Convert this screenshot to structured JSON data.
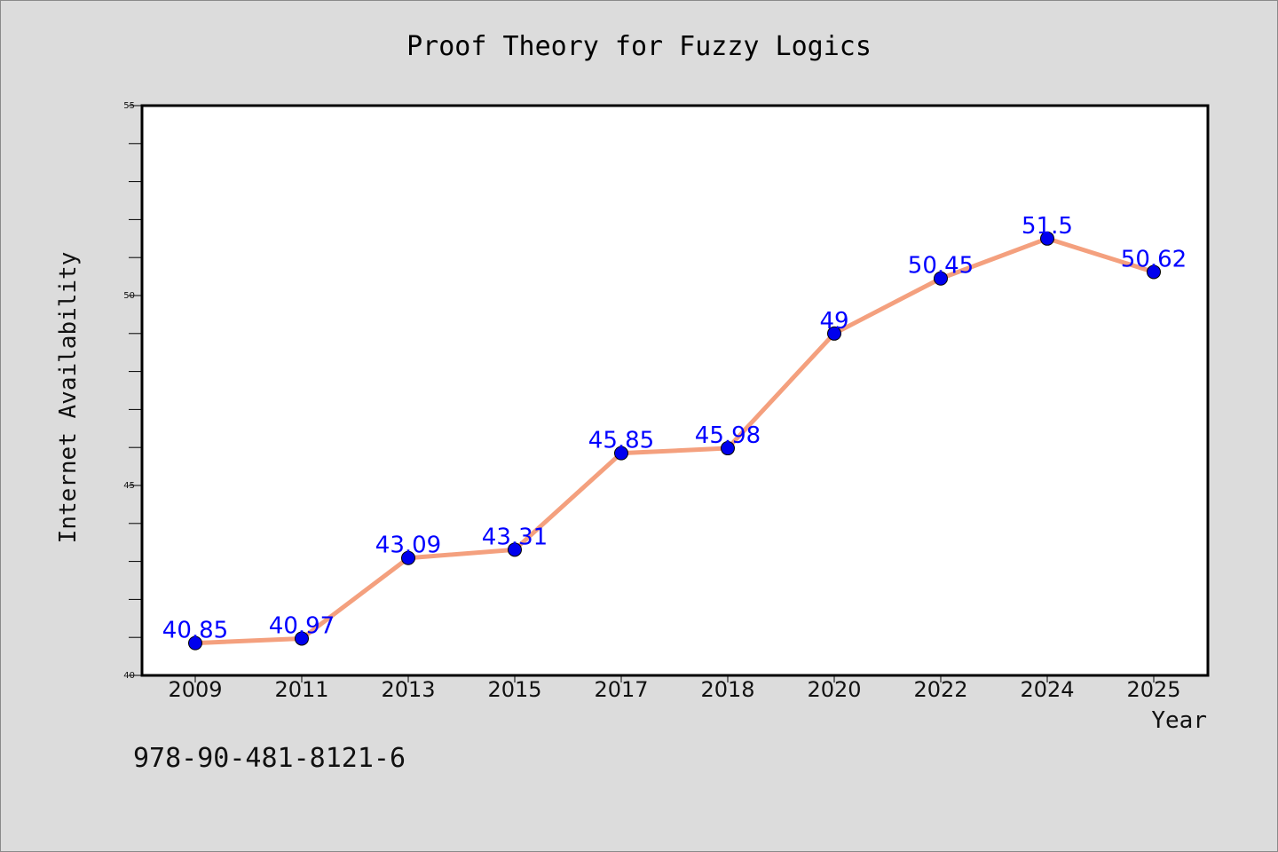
{
  "chart_data": {
    "type": "line",
    "title": "Proof Theory for Fuzzy Logics",
    "xlabel": "Year",
    "ylabel": "Internet Availability",
    "categories": [
      "2009",
      "2011",
      "2013",
      "2015",
      "2017",
      "2018",
      "2020",
      "2022",
      "2024",
      "2025"
    ],
    "series": [
      {
        "values": [
          40.85,
          40.97,
          43.09,
          43.31,
          45.85,
          45.98,
          49,
          50.45,
          51.5,
          50.62
        ],
        "labels": [
          "40.85",
          "40.97",
          "43.09",
          "43.31",
          "45.85",
          "45.98",
          "49",
          "50.45",
          "51.5",
          "50.62"
        ],
        "line_color": "#f4a07e",
        "marker_color": "#0000ee",
        "label_color": "#0000ff"
      }
    ],
    "ylim": [
      40,
      55
    ],
    "yticks": [
      "40",
      "45",
      "50",
      "55"
    ],
    "grid": false,
    "legend": "none"
  },
  "footer_text": "978-90-481-8121-6",
  "colors": {
    "background": "#dcdcdc",
    "plot_area": "#ffffff",
    "axis": "#000000"
  }
}
